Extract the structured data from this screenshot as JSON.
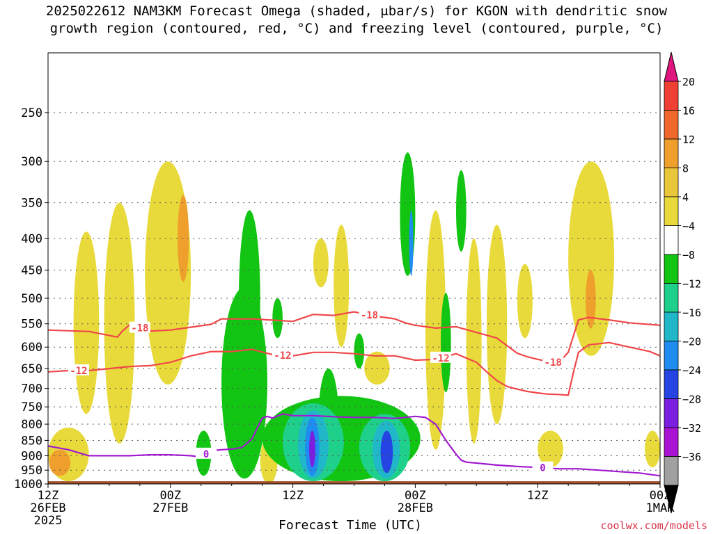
{
  "header": {
    "title_line1": "2025022612 NAM3KM Forecast Omega (shaded, μbar/s) for KGON with dendritic snow",
    "title_line2": "growth region (contoured, red, °C) and freezing level (contoured, purple, °C)"
  },
  "footer": {
    "xlabel": "Forecast Time (UTC)",
    "credit": "coolwx.com/models"
  },
  "chart_data": {
    "type": "heatmap",
    "title": "2025022612 NAM3KM Forecast Omega (shaded, μbar/s) for KGON with dendritic snow growth region (contoured, red, °C) and freezing level (contoured, purple, °C)",
    "xlabel": "Forecast Time (UTC)",
    "ylabel": "",
    "y_scale": "log-pressure",
    "y_inverted": true,
    "ylim": [
      1000,
      200
    ],
    "y_ticks": [
      250,
      300,
      350,
      400,
      450,
      500,
      550,
      600,
      650,
      700,
      750,
      800,
      850,
      900,
      950,
      1000
    ],
    "x_range_hours": [
      0,
      60
    ],
    "x_ticks": [
      {
        "hour": 0,
        "lines": [
          "12Z",
          "26FEB",
          "2025"
        ]
      },
      {
        "hour": 12,
        "lines": [
          "00Z",
          "27FEB"
        ]
      },
      {
        "hour": 24,
        "lines": [
          "12Z"
        ]
      },
      {
        "hour": 36,
        "lines": [
          "00Z",
          "28FEB"
        ]
      },
      {
        "hour": 48,
        "lines": [
          "12Z"
        ]
      },
      {
        "hour": 60,
        "lines": [
          "00Z",
          "1MAR"
        ]
      }
    ],
    "grid": true,
    "colorbar": {
      "labels": [
        "20",
        "16",
        "12",
        "8",
        "4",
        "−4",
        "−8",
        "−12",
        "−16",
        "−20",
        "−24",
        "−28",
        "−32",
        "−36"
      ],
      "bins": [
        {
          "lo": 16,
          "hi": 20,
          "color": "#ef4034"
        },
        {
          "lo": 12,
          "hi": 16,
          "color": "#f0682c"
        },
        {
          "lo": 8,
          "hi": 12,
          "color": "#ef9f2b"
        },
        {
          "lo": 4,
          "hi": 8,
          "color": "#e9c63a"
        },
        {
          "lo": 0,
          "hi": 4,
          "color": "#e8da3a"
        },
        {
          "lo": -4,
          "hi": 4,
          "color": "#ffffff"
        },
        {
          "lo": -8,
          "hi": -4,
          "color": "#12c512"
        },
        {
          "lo": -12,
          "hi": -8,
          "color": "#1fd08b"
        },
        {
          "lo": -16,
          "hi": -12,
          "color": "#20b8c8"
        },
        {
          "lo": -20,
          "hi": -16,
          "color": "#1e8cf0"
        },
        {
          "lo": -24,
          "hi": -20,
          "color": "#2445e4"
        },
        {
          "lo": -28,
          "hi": -24,
          "color": "#7a1ee0"
        },
        {
          "lo": -32,
          "hi": -28,
          "color": "#a914d2"
        },
        {
          "lo": -36,
          "hi": -32,
          "color": "#a0a0a0"
        }
      ],
      "top_arrow_color": "#e0157e",
      "bottom_arrow_color": "#000000"
    },
    "series": [
      {
        "name": "-18",
        "kind": "dendritic-contour",
        "color": "#f0474a",
        "label": "-18",
        "x": [
          0,
          4,
          6.8,
          7.3,
          8,
          10,
          12,
          14,
          16,
          17,
          20,
          24,
          26,
          28,
          30,
          31,
          32,
          33,
          34,
          35,
          36,
          38,
          40,
          42,
          44,
          46,
          47,
          48,
          49,
          50,
          51,
          52,
          53,
          55,
          57,
          60
        ],
        "y": [
          563,
          566,
          578,
          565,
          552,
          565,
          563,
          557,
          551,
          540,
          540,
          545,
          531,
          533,
          526,
          530,
          535,
          537,
          540,
          548,
          553,
          559,
          556,
          568,
          580,
          614,
          622,
          628,
          633,
          637,
          612,
          542,
          537,
          542,
          548,
          553
        ]
      },
      {
        "name": "-12",
        "kind": "dendritic-contour",
        "color": "#f0474a",
        "label": "-12",
        "x": [
          0,
          2,
          4,
          6,
          8,
          10,
          12,
          14,
          16,
          18,
          20,
          22,
          24,
          26,
          28,
          30,
          32,
          34,
          36,
          38,
          40,
          42,
          43,
          44,
          45,
          46,
          47,
          48,
          49,
          50,
          51,
          51.5,
          52,
          53,
          55,
          57,
          59,
          60
        ],
        "y": [
          658,
          655,
          655,
          650,
          645,
          643,
          635,
          620,
          610,
          610,
          605,
          617,
          620,
          612,
          612,
          615,
          620,
          620,
          630,
          628,
          615,
          635,
          658,
          680,
          695,
          702,
          708,
          712,
          715,
          716,
          718,
          660,
          612,
          595,
          590,
          600,
          610,
          620
        ]
      },
      {
        "name": "0",
        "kind": "freezing-level",
        "color": "#a11ad1",
        "label": "0",
        "x": [
          0,
          2,
          4,
          6,
          8,
          10,
          12,
          14,
          15,
          16,
          17,
          18,
          19,
          20,
          20.5,
          21,
          21.5,
          22,
          23,
          24,
          26,
          28,
          30,
          32,
          34,
          36,
          37,
          38,
          39,
          40,
          40.5,
          41,
          42,
          44,
          46,
          48,
          50,
          52,
          54,
          56,
          58,
          60
        ],
        "y": [
          868,
          880,
          900,
          900,
          900,
          897,
          897,
          900,
          905,
          883,
          880,
          878,
          873,
          845,
          812,
          782,
          777,
          782,
          770,
          775,
          775,
          778,
          780,
          780,
          783,
          777,
          780,
          800,
          850,
          895,
          915,
          922,
          925,
          932,
          937,
          940,
          945,
          945,
          950,
          955,
          960,
          970
        ]
      }
    ],
    "terrain_color": "#a0522d"
  }
}
